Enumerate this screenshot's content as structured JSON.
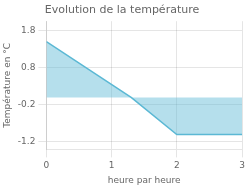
{
  "chart_data": {
    "type": "area",
    "title": "Evolution de la température",
    "x_label": "heure par heure",
    "y_label": "Température en °C",
    "x": [
      0,
      1.3,
      2.0,
      3.0
    ],
    "values": [
      1.5,
      0.0,
      -1.0,
      -1.0
    ],
    "color": "#5bb8d4",
    "xlim": [
      0,
      3.0
    ],
    "xticks": [
      0,
      1,
      2,
      3
    ],
    "ylim": [
      -1.4,
      2.05
    ],
    "yticks": [
      -1.2,
      -0.2,
      0.8,
      1.8
    ],
    "grid": true
  }
}
